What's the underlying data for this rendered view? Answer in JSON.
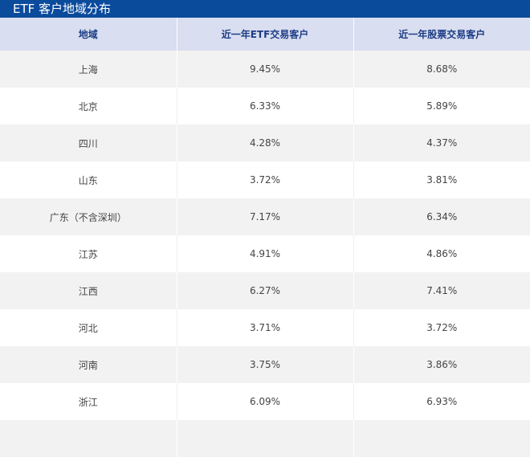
{
  "title": "ETF 客户地域分布",
  "headers": [
    "地域",
    "近一年ETF交易客户",
    "近一年股票交易客户"
  ],
  "rows": [
    [
      "上海",
      "9.45%",
      "8.68%"
    ],
    [
      "北京",
      "6.33%",
      "5.89%"
    ],
    [
      "四川",
      "4.28%",
      "4.37%"
    ],
    [
      "山东",
      "3.72%",
      "3.81%"
    ],
    [
      "广东（不含深圳）",
      "7.17%",
      "6.34%"
    ],
    [
      "江苏",
      "4.91%",
      "4.86%"
    ],
    [
      "江西",
      "6.27%",
      "7.41%"
    ],
    [
      "河北",
      "3.71%",
      "3.72%"
    ],
    [
      "河南",
      "3.75%",
      "3.86%"
    ],
    [
      "浙江",
      "6.09%",
      "6.93%"
    ],
    [
      "",
      "",
      ""
    ]
  ],
  "colors": {
    "title_bg": "#0b4b9c",
    "header_bg": "#d9def0",
    "header_text": "#1d3d86",
    "stripe": "#f2f2f2"
  }
}
